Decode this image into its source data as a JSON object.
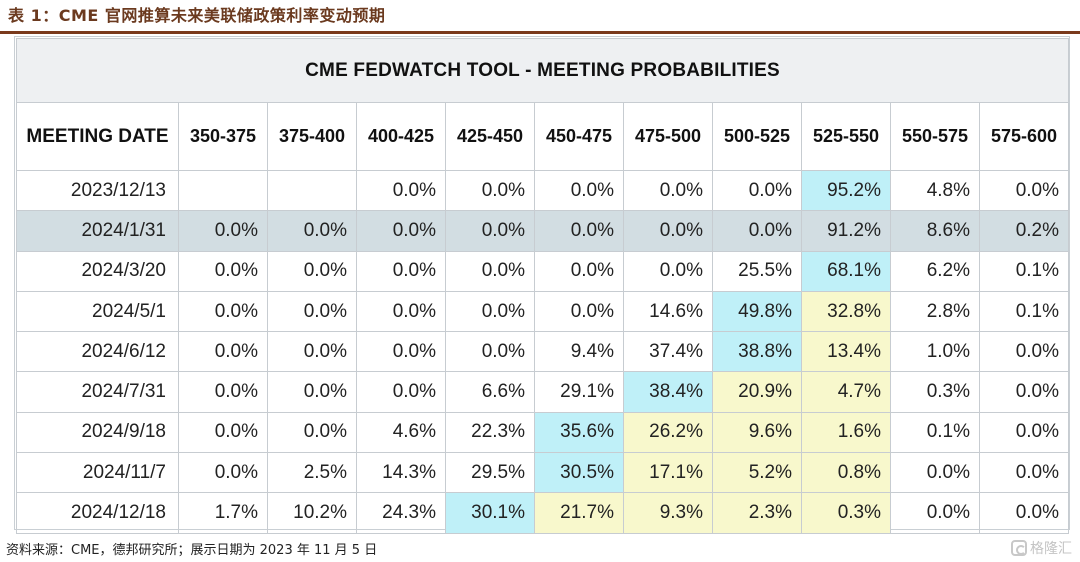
{
  "caption": "表 1：CME 官网推算未来美联储政策利率变动预期",
  "table": {
    "title": "CME FEDWATCH TOOL - MEETING PROBABILITIES",
    "date_header": "MEETING DATE",
    "ranges": [
      "350-375",
      "375-400",
      "400-425",
      "425-450",
      "450-475",
      "475-500",
      "500-525",
      "525-550",
      "550-575",
      "575-600"
    ],
    "rows": [
      {
        "date": "2023/12/13",
        "values": [
          "",
          "",
          "0.0%",
          "0.0%",
          "0.0%",
          "0.0%",
          "0.0%",
          "95.2%",
          "4.8%",
          "0.0%"
        ]
      },
      {
        "date": "2024/1/31",
        "values": [
          "0.0%",
          "0.0%",
          "0.0%",
          "0.0%",
          "0.0%",
          "0.0%",
          "0.0%",
          "91.2%",
          "8.6%",
          "0.2%"
        ]
      },
      {
        "date": "2024/3/20",
        "values": [
          "0.0%",
          "0.0%",
          "0.0%",
          "0.0%",
          "0.0%",
          "0.0%",
          "25.5%",
          "68.1%",
          "6.2%",
          "0.1%"
        ]
      },
      {
        "date": "2024/5/1",
        "values": [
          "0.0%",
          "0.0%",
          "0.0%",
          "0.0%",
          "0.0%",
          "14.6%",
          "49.8%",
          "32.8%",
          "2.8%",
          "0.1%"
        ]
      },
      {
        "date": "2024/6/12",
        "values": [
          "0.0%",
          "0.0%",
          "0.0%",
          "0.0%",
          "9.4%",
          "37.4%",
          "38.8%",
          "13.4%",
          "1.0%",
          "0.0%"
        ]
      },
      {
        "date": "2024/7/31",
        "values": [
          "0.0%",
          "0.0%",
          "0.0%",
          "6.6%",
          "29.1%",
          "38.4%",
          "20.9%",
          "4.7%",
          "0.3%",
          "0.0%"
        ]
      },
      {
        "date": "2024/9/18",
        "values": [
          "0.0%",
          "0.0%",
          "4.6%",
          "22.3%",
          "35.6%",
          "26.2%",
          "9.6%",
          "1.6%",
          "0.1%",
          "0.0%"
        ]
      },
      {
        "date": "2024/11/7",
        "values": [
          "0.0%",
          "2.5%",
          "14.3%",
          "29.5%",
          "30.5%",
          "17.1%",
          "5.2%",
          "0.8%",
          "0.0%",
          "0.0%"
        ]
      },
      {
        "date": "2024/12/18",
        "values": [
          "1.7%",
          "10.2%",
          "24.3%",
          "30.1%",
          "21.7%",
          "9.3%",
          "2.3%",
          "0.3%",
          "0.0%",
          "0.0%"
        ]
      }
    ]
  },
  "source_note": "资料来源：CME，德邦研究所；展示日期为 2023 年 11 月 5 日",
  "watermark": "格隆汇",
  "colors": {
    "caption_text": "#6b3a1f",
    "caption_rule": "#7a3a1c",
    "title_bg": "#eef0f2",
    "highlight_row_bg": "#d2dde2",
    "max_prob_cell": "#bff0f8",
    "above_current_rate_cell": "#f8f8cc",
    "grid_line": "#c7ccd1"
  }
}
